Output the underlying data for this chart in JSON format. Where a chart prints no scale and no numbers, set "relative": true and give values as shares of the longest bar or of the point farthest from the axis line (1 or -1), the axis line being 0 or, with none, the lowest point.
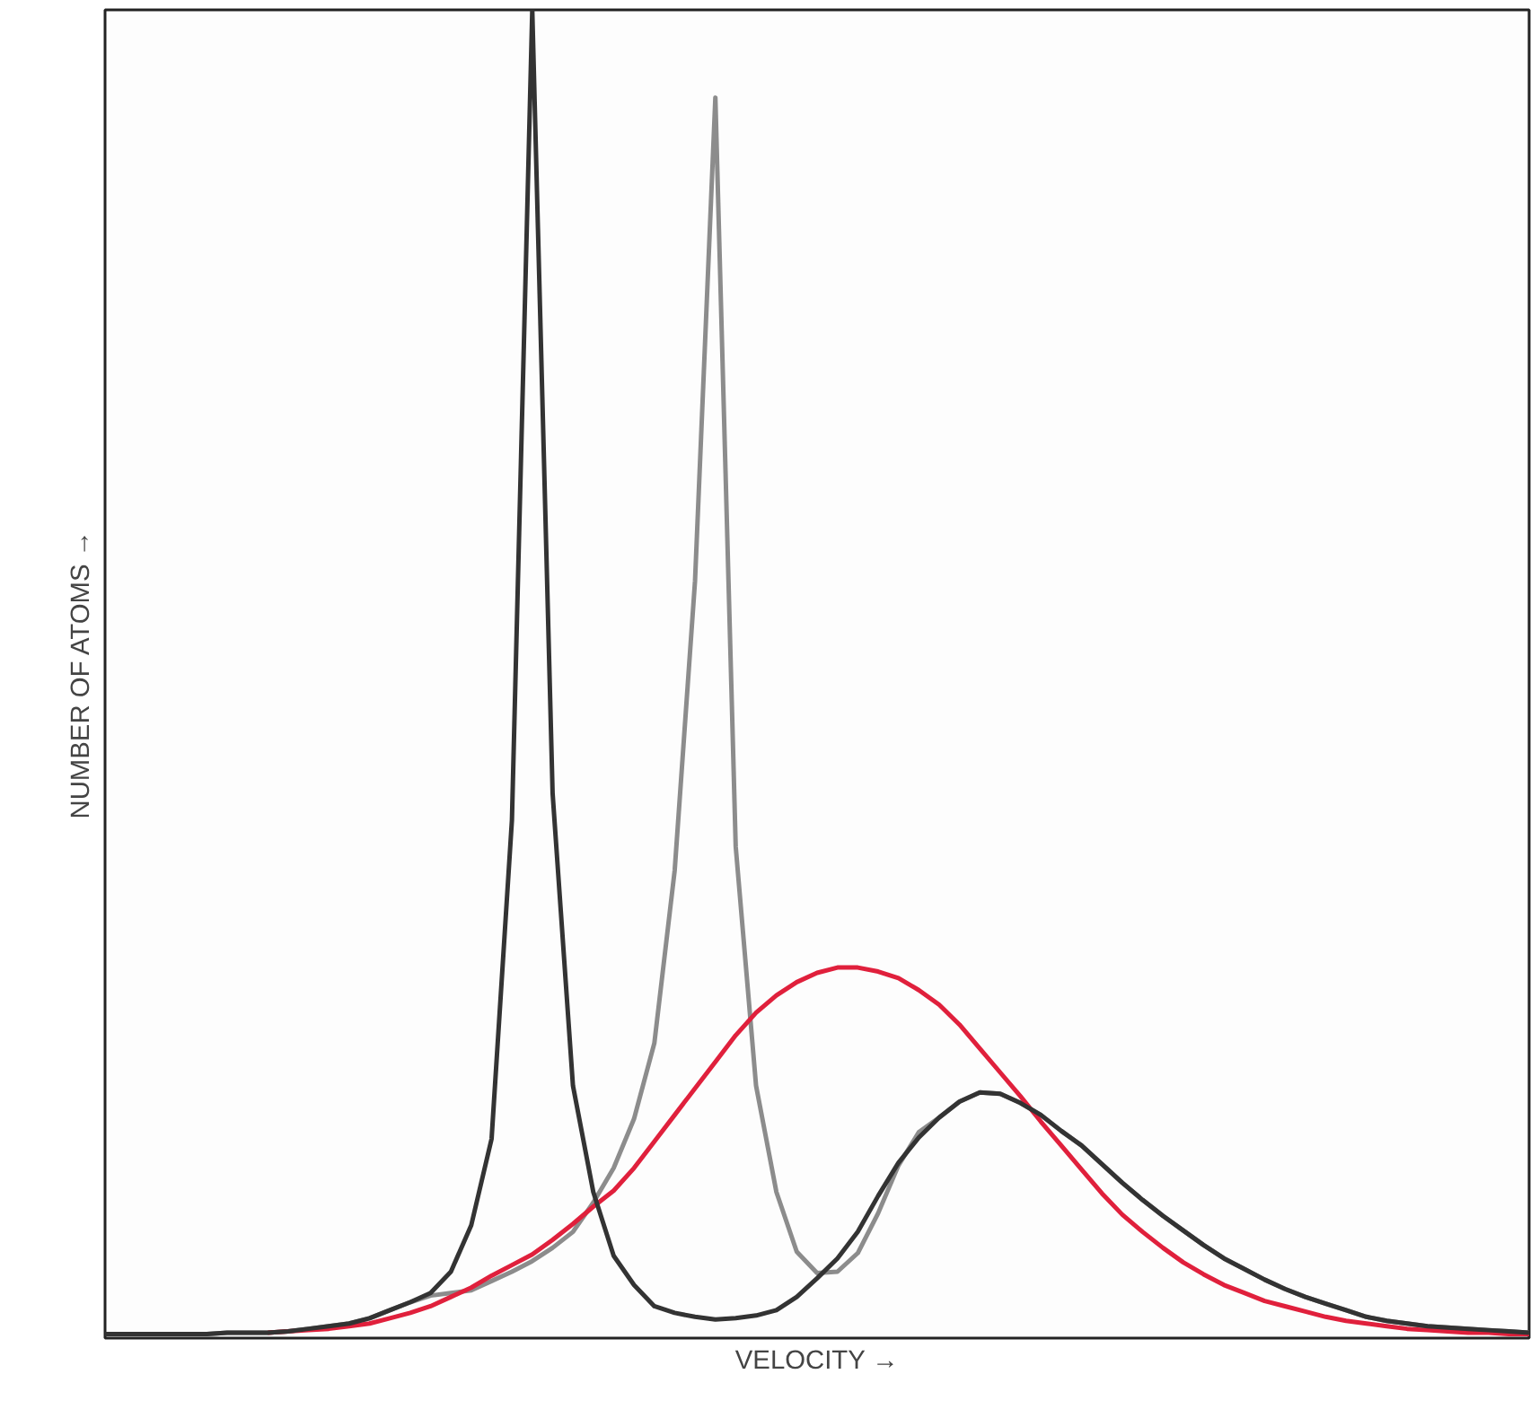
{
  "chart_data": {
    "type": "line",
    "relative": true,
    "xlabel": "VELOCITY →",
    "ylabel": "NUMBER OF ATOMS →",
    "line_style": "solid",
    "categories": [
      null,
      null,
      null,
      null,
      null,
      null,
      null,
      null,
      null,
      null,
      null,
      null,
      null,
      null,
      null,
      null,
      null,
      null,
      null,
      null,
      null,
      null,
      null,
      null,
      null,
      null,
      null,
      null,
      null,
      null,
      null,
      null,
      null,
      null,
      null,
      null,
      null,
      null,
      null,
      null,
      null,
      null,
      null,
      null,
      null,
      null,
      null,
      null,
      null,
      null,
      null,
      null,
      null,
      null,
      null,
      null,
      null,
      null,
      null,
      null,
      null,
      null,
      null,
      null,
      null,
      null,
      null,
      null,
      null,
      null,
      null
    ],
    "series": [
      {
        "color": "#8c8c8c",
        "values": [
          0.003,
          0.003,
          0.003,
          0.003,
          0.003,
          0.003,
          0.004,
          0.004,
          0.004,
          0.005,
          0.007,
          0.009,
          0.011,
          0.015,
          0.021,
          0.027,
          0.032,
          0.034,
          0.036,
          0.043,
          0.05,
          0.058,
          0.068,
          0.08,
          0.102,
          0.128,
          0.165,
          0.222,
          0.352,
          0.57,
          0.934,
          0.37,
          0.19,
          0.11,
          0.065,
          0.049,
          0.05,
          0.064,
          0.094,
          0.13,
          0.155,
          0.166,
          0.178,
          0.185,
          0.184,
          0.177,
          0.168,
          0.156,
          0.145,
          0.131,
          0.117,
          0.104,
          0.092,
          0.081,
          0.07,
          0.06,
          0.052,
          0.044,
          0.037,
          0.031,
          0.026,
          0.021,
          0.016,
          0.013,
          0.011,
          0.009,
          0.008,
          0.007,
          0.006,
          0.005,
          0.004
        ]
      },
      {
        "color": "#e0203c",
        "values": [
          null,
          null,
          null,
          null,
          null,
          null,
          null,
          null,
          0.004,
          0.005,
          0.006,
          0.007,
          0.009,
          0.011,
          0.015,
          0.019,
          0.024,
          0.031,
          0.038,
          0.047,
          0.055,
          0.063,
          0.074,
          0.086,
          0.099,
          0.111,
          0.128,
          0.148,
          0.168,
          0.188,
          0.208,
          0.228,
          0.245,
          0.258,
          0.268,
          0.275,
          0.279,
          0.279,
          0.276,
          0.271,
          0.262,
          0.251,
          0.236,
          0.218,
          0.2,
          0.182,
          0.163,
          0.145,
          0.127,
          0.109,
          0.093,
          0.08,
          0.068,
          0.057,
          0.048,
          0.04,
          0.034,
          0.028,
          0.024,
          0.02,
          0.016,
          0.013,
          0.011,
          0.009,
          0.007,
          0.006,
          0.005,
          0.004,
          0.004,
          0.003,
          0.003
        ]
      },
      {
        "color": "#333333",
        "values": [
          0.003,
          0.003,
          0.003,
          0.003,
          0.003,
          0.003,
          0.004,
          0.004,
          0.004,
          0.005,
          0.007,
          0.009,
          0.011,
          0.015,
          0.021,
          0.027,
          0.034,
          0.05,
          0.085,
          0.15,
          0.39,
          1,
          0.41,
          0.19,
          0.11,
          0.062,
          0.04,
          0.024,
          0.019,
          0.016,
          0.014,
          0.015,
          0.017,
          0.021,
          0.031,
          0.045,
          0.06,
          0.08,
          0.107,
          0.132,
          0.151,
          0.166,
          0.178,
          0.185,
          0.184,
          0.177,
          0.168,
          0.156,
          0.145,
          0.131,
          0.117,
          0.104,
          0.092,
          0.081,
          0.07,
          0.06,
          0.052,
          0.044,
          0.037,
          0.031,
          0.026,
          0.021,
          0.016,
          0.013,
          0.011,
          0.009,
          0.008,
          0.007,
          0.006,
          0.005,
          0.004
        ]
      }
    ]
  }
}
